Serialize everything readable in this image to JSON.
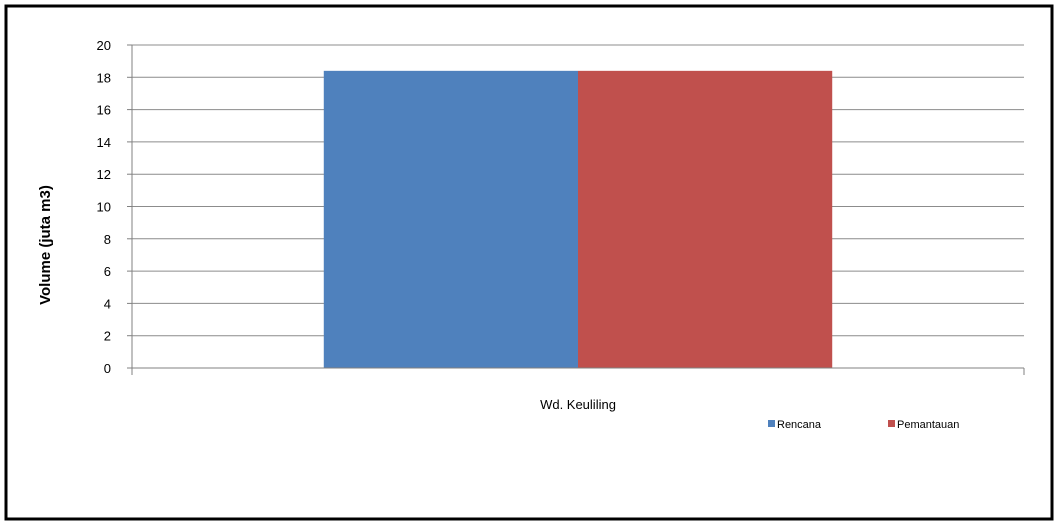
{
  "chart_data": {
    "type": "bar",
    "title": "",
    "xlabel": "",
    "ylabel": "Volume (juta m3)",
    "categories": [
      "Wd. Keuliling"
    ],
    "series": [
      {
        "name": "Rencana",
        "values": [
          18.4
        ],
        "color": "#4F81BD"
      },
      {
        "name": "Pemantauan",
        "values": [
          18.4
        ],
        "color": "#C0504D"
      }
    ],
    "ylim": [
      0,
      20
    ],
    "yticks": [
      0,
      2,
      4,
      6,
      8,
      10,
      12,
      14,
      16,
      18,
      20
    ],
    "grid": true,
    "legend_position": "bottom-right"
  }
}
